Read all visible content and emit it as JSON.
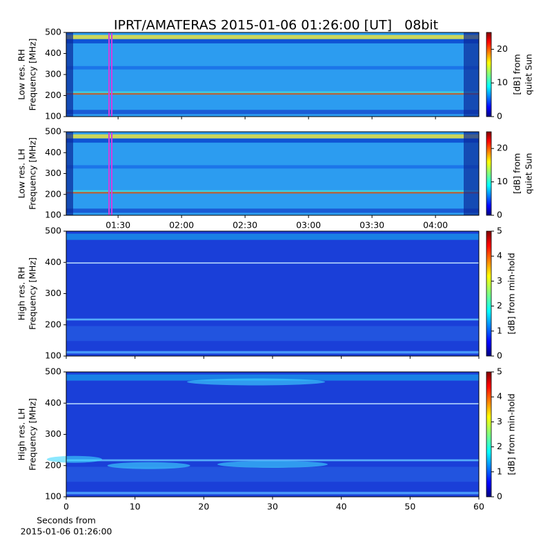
{
  "title": "IPRT/AMATERAS 2015-01-06 01:26:00 [UT]   08bit",
  "chart_data": [
    {
      "type": "spectrogram",
      "ylabel": [
        "Low res. RH",
        "Frequency [MHz]"
      ],
      "ylim": [
        100,
        500
      ],
      "yticks": [
        100,
        200,
        300,
        400,
        500
      ],
      "xlim": [
        65.5,
        260.5
      ],
      "colorbar_label": [
        "[dB] from",
        "quiet Sun"
      ],
      "clim": [
        0,
        25
      ],
      "cticks": [
        0,
        10,
        20
      ]
    },
    {
      "type": "spectrogram",
      "ylabel": [
        "Low res. LH",
        "Frequency [MHz]"
      ],
      "ylim": [
        100,
        500
      ],
      "yticks": [
        100,
        200,
        300,
        400,
        500
      ],
      "xlim": [
        65.5,
        260.5
      ],
      "xticks": [
        {
          "value": 90,
          "label": "01:30"
        },
        {
          "value": 120,
          "label": "02:00"
        },
        {
          "value": 150,
          "label": "02:30"
        },
        {
          "value": 180,
          "label": "03:00"
        },
        {
          "value": 210,
          "label": "03:30"
        },
        {
          "value": 240,
          "label": "04:00"
        }
      ],
      "colorbar_label": [
        "[dB] from",
        "quiet Sun"
      ],
      "clim": [
        0,
        25
      ],
      "cticks": [
        0,
        10,
        20
      ]
    },
    {
      "type": "spectrogram",
      "ylabel": [
        "High res. RH",
        "Frequency [MHz]"
      ],
      "ylim": [
        100,
        500
      ],
      "yticks": [
        100,
        200,
        300,
        400,
        500
      ],
      "xlim": [
        0,
        60
      ],
      "colorbar_label": [
        "[dB] from min-hold"
      ],
      "clim": [
        0,
        5
      ],
      "cticks": [
        0,
        1,
        2,
        3,
        4,
        5
      ]
    },
    {
      "type": "spectrogram",
      "ylabel": [
        "High res. LH",
        "Frequency [MHz]"
      ],
      "ylim": [
        100,
        500
      ],
      "yticks": [
        100,
        200,
        300,
        400,
        500
      ],
      "xlim": [
        0,
        60
      ],
      "xticks": [
        0,
        10,
        20,
        30,
        40,
        50,
        60
      ],
      "xlabel": [
        "Seconds from",
        "2015-01-06 01:26:00"
      ],
      "colorbar_label": [
        "[dB] from min-hold"
      ],
      "clim": [
        0,
        5
      ],
      "cticks": [
        0,
        1,
        2,
        3,
        4,
        5
      ]
    }
  ]
}
